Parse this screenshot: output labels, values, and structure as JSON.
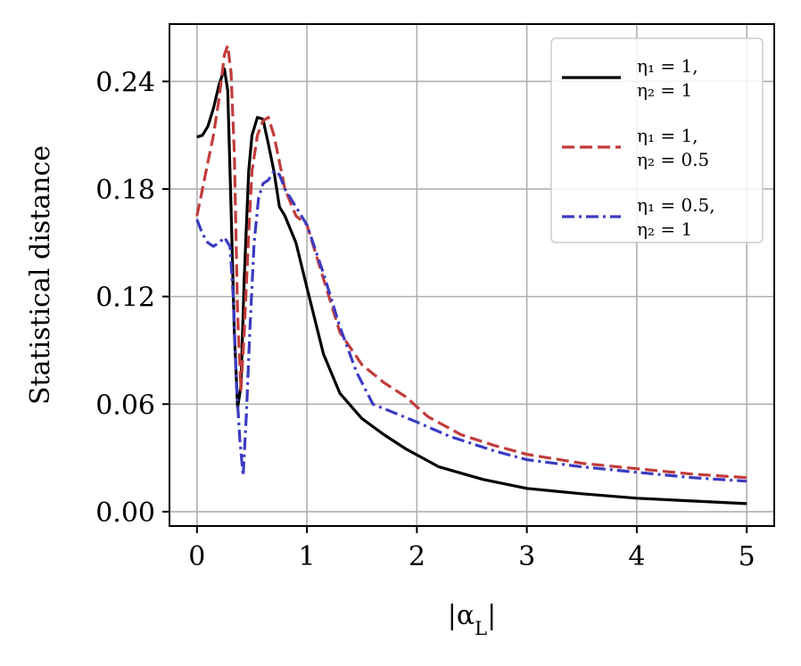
{
  "chart_data": {
    "type": "line",
    "xlabel": "|α_L|",
    "ylabel": "Statistical distance",
    "xlim": [
      -0.25,
      5.25
    ],
    "ylim": [
      -0.008,
      0.272
    ],
    "xticks": [
      0,
      1,
      2,
      3,
      4,
      5
    ],
    "xtick_labels": [
      "0",
      "1",
      "2",
      "3",
      "4",
      "5"
    ],
    "yticks": [
      0.0,
      0.06,
      0.12,
      0.18,
      0.24
    ],
    "ytick_labels": [
      "0.00",
      "0.06",
      "0.12",
      "0.18",
      "0.24"
    ],
    "grid": true,
    "legend_position": "top-right",
    "series": [
      {
        "name": "η1 = 1, η2 = 1",
        "label_line1": "η₁ = 1,",
        "label_line2": "η₂ = 1",
        "color": "#000000",
        "style": "solid",
        "x": [
          0.0,
          0.05,
          0.1,
          0.15,
          0.2,
          0.25,
          0.28,
          0.31,
          0.34,
          0.37,
          0.4,
          0.43,
          0.47,
          0.5,
          0.55,
          0.6,
          0.65,
          0.7,
          0.75,
          0.8,
          0.9,
          1.0,
          1.15,
          1.3,
          1.5,
          1.7,
          1.9,
          2.2,
          2.6,
          3.0,
          3.5,
          4.0,
          4.5,
          5.0
        ],
        "y": [
          0.209,
          0.21,
          0.215,
          0.225,
          0.238,
          0.247,
          0.235,
          0.17,
          0.1,
          0.058,
          0.07,
          0.13,
          0.19,
          0.21,
          0.22,
          0.219,
          0.205,
          0.19,
          0.17,
          0.165,
          0.15,
          0.125,
          0.088,
          0.066,
          0.052,
          0.043,
          0.035,
          0.025,
          0.018,
          0.013,
          0.01,
          0.0075,
          0.006,
          0.0045
        ]
      },
      {
        "name": "η1 = 1, η2 = 0.5",
        "label_line1": "η₁ = 1,",
        "label_line2": "η₂ = 0.5",
        "color": "#c23b3b",
        "style": "dashed",
        "x": [
          0.0,
          0.05,
          0.1,
          0.15,
          0.2,
          0.25,
          0.28,
          0.31,
          0.34,
          0.37,
          0.4,
          0.43,
          0.47,
          0.5,
          0.55,
          0.6,
          0.65,
          0.7,
          0.75,
          0.8,
          0.9,
          1.0,
          1.15,
          1.3,
          1.5,
          1.7,
          1.9,
          2.1,
          2.4,
          2.7,
          3.0,
          3.5,
          4.0,
          4.5,
          5.0
        ],
        "y": [
          0.165,
          0.18,
          0.195,
          0.21,
          0.23,
          0.255,
          0.26,
          0.245,
          0.2,
          0.11,
          0.068,
          0.1,
          0.155,
          0.19,
          0.21,
          0.218,
          0.22,
          0.21,
          0.195,
          0.18,
          0.165,
          0.16,
          0.13,
          0.1,
          0.082,
          0.072,
          0.064,
          0.053,
          0.043,
          0.037,
          0.032,
          0.027,
          0.024,
          0.021,
          0.019
        ]
      },
      {
        "name": "η1 = 0.5, η2 = 1",
        "label_line1": "η₁ = 0.5,",
        "label_line2": "η₂ = 1",
        "color": "#3b3bc2",
        "style": "dashdot",
        "x": [
          0.0,
          0.05,
          0.1,
          0.15,
          0.2,
          0.25,
          0.3,
          0.33,
          0.36,
          0.39,
          0.42,
          0.45,
          0.48,
          0.52,
          0.56,
          0.6,
          0.65,
          0.7,
          0.75,
          0.8,
          0.9,
          1.0,
          1.15,
          1.3,
          1.45,
          1.6,
          1.8,
          2.0,
          2.3,
          2.7,
          3.0,
          3.5,
          4.0,
          4.5,
          5.0
        ],
        "y": [
          0.163,
          0.155,
          0.15,
          0.148,
          0.15,
          0.153,
          0.148,
          0.12,
          0.07,
          0.04,
          0.02,
          0.055,
          0.1,
          0.15,
          0.175,
          0.183,
          0.185,
          0.19,
          0.188,
          0.18,
          0.17,
          0.16,
          0.133,
          0.103,
          0.078,
          0.06,
          0.055,
          0.05,
          0.042,
          0.034,
          0.029,
          0.025,
          0.022,
          0.019,
          0.017
        ]
      }
    ]
  }
}
